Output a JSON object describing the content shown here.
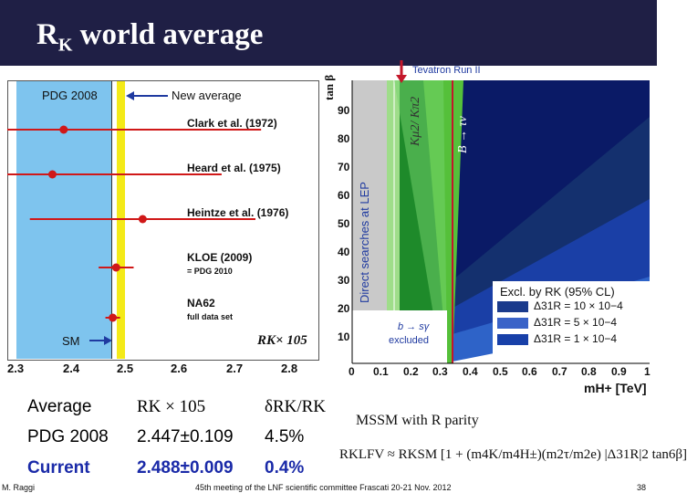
{
  "slide": {
    "title_main": "R",
    "title_sub": "K",
    "title_rest": " world average"
  },
  "left_plot": {
    "pdg_label": "PDG 2008",
    "new_average_label": "New average",
    "sm_label": "SM",
    "axis_label": "RK× 105",
    "x_ticks": [
      "2.3",
      "2.4",
      "2.5",
      "2.6",
      "2.7",
      "2.8"
    ],
    "measurements": [
      {
        "name": "Clark et al. (1972)",
        "note": "",
        "value": 2.4,
        "err_low": 0.35,
        "err_high": 0.35
      },
      {
        "name": "Heard et al. (1975)",
        "note": "",
        "value": 2.38,
        "err_low": 0.3,
        "err_high": 0.3
      },
      {
        "name": "Heintze et al. (1976)",
        "note": "",
        "value": 2.54,
        "err_low": 0.2,
        "err_high": 0.2
      },
      {
        "name": "KLOE (2009)",
        "note": "= PDG 2010",
        "value": 2.493,
        "err_low": 0.031,
        "err_high": 0.031
      },
      {
        "name": "NA62",
        "note": "full data set",
        "value": 2.487,
        "err_low": 0.013,
        "err_high": 0.013
      }
    ],
    "pdg_value": 2.447,
    "new_average_value": 2.488,
    "sm_value": 2.477
  },
  "table": {
    "headers": [
      "Average",
      "RK × 105",
      "δRK/RK"
    ],
    "rows": [
      {
        "label": "PDG 2008",
        "value": "2.447±0.109",
        "rel": "4.5%"
      },
      {
        "label": "Current",
        "value": "2.488±0.009",
        "rel": "0.4%"
      }
    ]
  },
  "right_plot": {
    "y_axis_title": "tan β",
    "x_axis_title": "mH+ [TeV]",
    "y_ticks": [
      "10",
      "20",
      "30",
      "40",
      "50",
      "60",
      "70",
      "80",
      "90"
    ],
    "x_ticks": [
      "0",
      "0.1",
      "0.2",
      "0.3",
      "0.4",
      "0.5",
      "0.6",
      "0.7",
      "0.8",
      "0.9",
      "1"
    ],
    "lep_label": "Direct searches at LEP",
    "tevatron_label": "Tevatron Run II",
    "ktaunu_label": "Kμ2/ Kπ2",
    "btaunu_label": "B → τν",
    "bsgamma_label": "b → sγ",
    "bsgamma_sub": "excluded",
    "legend_title": "Excl. by RK (95% CL)",
    "legend": [
      {
        "label": "Δ31R = 10 × 10−4",
        "color": "#1a3a8c"
      },
      {
        "label": "Δ31R = 5 × 10−4",
        "color": "#3a63c8"
      },
      {
        "label": "Δ31R = 1 × 10−4",
        "color": "#1840a8"
      }
    ]
  },
  "formula": {
    "mssm_label": "MSSM with R parity",
    "text": "RKLFV ≈ RKSM [1 + (m4K/m4H±)(m2τ/m2e) |Δ31R|2 tan6β]"
  },
  "footer": {
    "author": "M. Raggi",
    "meeting": "45th meeting of the LNF scientific committee Frascati 20-21 Nov. 2012",
    "page": "38"
  }
}
